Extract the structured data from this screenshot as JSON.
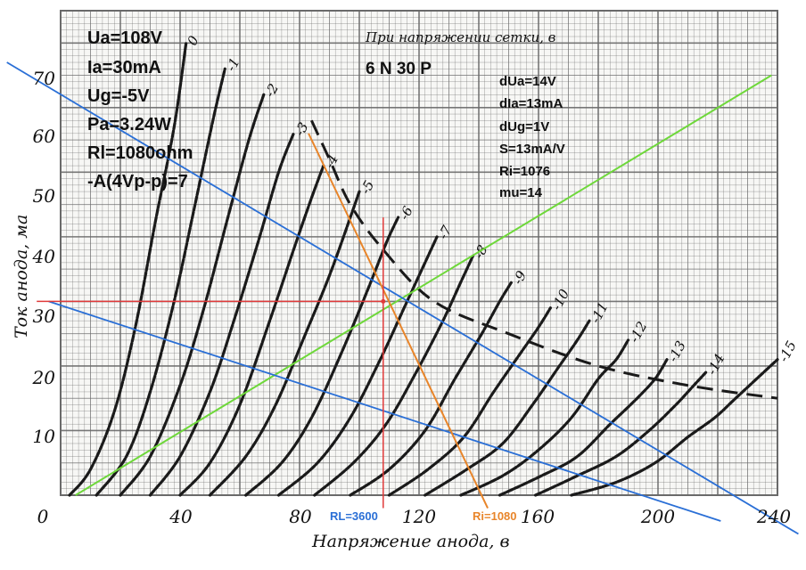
{
  "chart_data": {
    "type": "line",
    "title": "При напряжении сетки, в",
    "tube": "6 N 30 P",
    "xlabel": "Напряжение анода, в",
    "ylabel": "Ток анода, ма",
    "xlim": [
      0,
      240
    ],
    "ylim": [
      0,
      75
    ],
    "x_ticks": [
      "0",
      "40",
      "80",
      "120",
      "160",
      "200",
      "240"
    ],
    "y_ticks": [
      "10",
      "20",
      "30",
      "40",
      "50",
      "60",
      "70"
    ],
    "grid": true,
    "series": [
      {
        "name": "0",
        "points": [
          [
            3,
            0
          ],
          [
            10,
            4
          ],
          [
            18,
            13
          ],
          [
            25,
            26
          ],
          [
            32,
            43
          ],
          [
            38,
            57
          ],
          [
            42,
            70
          ]
        ]
      },
      {
        "name": "-1",
        "points": [
          [
            12,
            0
          ],
          [
            22,
            6
          ],
          [
            30,
            16
          ],
          [
            38,
            30
          ],
          [
            45,
            45
          ],
          [
            51,
            58
          ],
          [
            55,
            66
          ]
        ]
      },
      {
        "name": "-2",
        "points": [
          [
            20,
            0
          ],
          [
            30,
            6
          ],
          [
            40,
            17
          ],
          [
            48,
            29
          ],
          [
            56,
            43
          ],
          [
            63,
            55
          ],
          [
            68,
            62
          ]
        ]
      },
      {
        "name": "-3",
        "points": [
          [
            30,
            0
          ],
          [
            40,
            6
          ],
          [
            50,
            16
          ],
          [
            58,
            27
          ],
          [
            66,
            39
          ],
          [
            73,
            50
          ],
          [
            78,
            56
          ]
        ]
      },
      {
        "name": "-4",
        "points": [
          [
            40,
            0
          ],
          [
            50,
            5
          ],
          [
            60,
            14
          ],
          [
            70,
            27
          ],
          [
            78,
            38
          ],
          [
            84,
            46
          ],
          [
            88,
            51
          ]
        ]
      },
      {
        "name": "-5",
        "points": [
          [
            50,
            0
          ],
          [
            62,
            6
          ],
          [
            72,
            14
          ],
          [
            82,
            25
          ],
          [
            90,
            34
          ],
          [
            97,
            43
          ],
          [
            100,
            47
          ]
        ]
      },
      {
        "name": "-6",
        "points": [
          [
            62,
            0
          ],
          [
            74,
            5
          ],
          [
            84,
            12
          ],
          [
            94,
            22
          ],
          [
            103,
            32
          ],
          [
            109,
            39
          ],
          [
            113,
            43
          ]
        ]
      },
      {
        "name": "-7",
        "points": [
          [
            73,
            0
          ],
          [
            86,
            5
          ],
          [
            97,
            12
          ],
          [
            107,
            21
          ],
          [
            116,
            30
          ],
          [
            122,
            36
          ],
          [
            126,
            40
          ]
        ]
      },
      {
        "name": "-8",
        "points": [
          [
            85,
            0
          ],
          [
            98,
            5
          ],
          [
            109,
            11
          ],
          [
            119,
            19
          ],
          [
            128,
            27
          ],
          [
            134,
            33
          ],
          [
            138,
            37
          ]
        ]
      },
      {
        "name": "-9",
        "points": [
          [
            97,
            0
          ],
          [
            110,
            4
          ],
          [
            122,
            10
          ],
          [
            132,
            18
          ],
          [
            141,
            25
          ],
          [
            147,
            30
          ],
          [
            151,
            33
          ]
        ]
      },
      {
        "name": "-10",
        "points": [
          [
            110,
            0
          ],
          [
            123,
            4
          ],
          [
            135,
            9
          ],
          [
            145,
            16
          ],
          [
            154,
            22
          ],
          [
            160,
            26
          ],
          [
            164,
            29
          ]
        ]
      },
      {
        "name": "-11",
        "points": [
          [
            122,
            0
          ],
          [
            136,
            4
          ],
          [
            148,
            8
          ],
          [
            158,
            14
          ],
          [
            167,
            20
          ],
          [
            173,
            24
          ],
          [
            177,
            27
          ]
        ]
      },
      {
        "name": "-12",
        "points": [
          [
            134,
            0
          ],
          [
            148,
            3
          ],
          [
            160,
            7
          ],
          [
            171,
            12
          ],
          [
            180,
            18
          ],
          [
            186,
            21
          ],
          [
            190,
            24
          ]
        ]
      },
      {
        "name": "-13",
        "points": [
          [
            147,
            0
          ],
          [
            161,
            3
          ],
          [
            173,
            6
          ],
          [
            184,
            11
          ],
          [
            193,
            15
          ],
          [
            199,
            18
          ],
          [
            203,
            21
          ]
        ]
      },
      {
        "name": "-14",
        "points": [
          [
            159,
            0
          ],
          [
            173,
            3
          ],
          [
            186,
            6
          ],
          [
            197,
            10
          ],
          [
            206,
            14
          ],
          [
            212,
            17
          ],
          [
            216,
            19
          ]
        ]
      },
      {
        "name": "-15",
        "points": [
          [
            171,
            0
          ],
          [
            186,
            2
          ],
          [
            199,
            5
          ],
          [
            210,
            9
          ],
          [
            219,
            12
          ],
          [
            226,
            15
          ],
          [
            240,
            21
          ]
        ]
      }
    ],
    "pa_limit": {
      "points": [
        [
          84,
          58
        ],
        [
          90,
          52
        ],
        [
          97,
          45
        ],
        [
          108,
          38
        ],
        [
          125,
          30
        ],
        [
          150,
          25
        ],
        [
          180,
          20
        ],
        [
          210,
          17
        ],
        [
          240,
          15
        ]
      ]
    },
    "constructions": {
      "operating_point": {
        "x": 108,
        "y": 30
      },
      "load_line_rl3600": {
        "points": [
          [
            -4,
            30
          ],
          [
            221,
            -4
          ]
        ]
      },
      "load_line_upper": {
        "points": [
          [
            -18,
            67
          ],
          [
            247,
            -6
          ]
        ]
      },
      "ri_line": {
        "points": [
          [
            83,
            56
          ],
          [
            143,
            -2
          ]
        ]
      },
      "green_line": {
        "points": [
          [
            5,
            0
          ],
          [
            238,
            65
          ]
        ]
      },
      "ref_vertical": {
        "x": 108,
        "y_range": [
          -2,
          43
        ]
      },
      "ref_horizontal": {
        "y": 30,
        "x_range": [
          -8,
          108
        ]
      }
    },
    "annotations_left": [
      "Ua=108V",
      "Ia=30mA",
      "Ug=-5V",
      "Pa=3.24W",
      "Rl=1080ohm",
      "-A(4Vp-p)=7"
    ],
    "annotations_right": [
      "dUa=14V",
      "dIa=13mA",
      "dUg=1V",
      "S=13mA/V",
      "Ri=1076",
      "mu=14"
    ],
    "rl_label": "RL=3600",
    "ri_label": "Ri=1080",
    "colors": {
      "curve": "#1a1a1a",
      "grid": "#6a6a6a",
      "red": "#e03a3a",
      "blue": "#2a6fd6",
      "orange": "#e8852a",
      "green": "#6ed83a"
    }
  }
}
